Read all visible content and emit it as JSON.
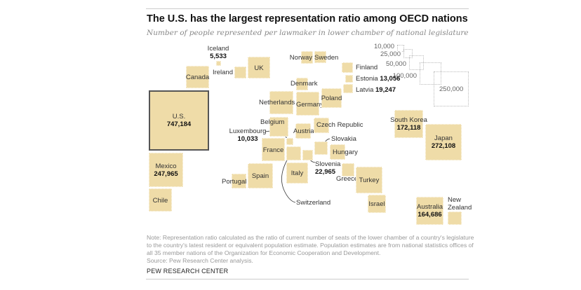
{
  "header": {
    "title": "The U.S. has the largest representation ratio among OECD nations",
    "subtitle": "Number of people represented per lawmaker in lower chamber of national legislature"
  },
  "chart_data": {
    "type": "square-area cartogram",
    "title": "The U.S. has the largest representation ratio among OECD nations",
    "measure": "People represented per lawmaker",
    "legend": {
      "placement": "top-right",
      "sizes": [
        "10,000",
        "25,000",
        "50,000",
        "100,000",
        "250,000"
      ]
    },
    "countries": [
      {
        "name": "Iceland",
        "value": "5,533"
      },
      {
        "name": "Ireland"
      },
      {
        "name": "UK"
      },
      {
        "name": "Canada"
      },
      {
        "name": "U.S.",
        "value": "747,184"
      },
      {
        "name": "Mexico",
        "value": "247,965"
      },
      {
        "name": "Chile"
      },
      {
        "name": "Norway"
      },
      {
        "name": "Sweden"
      },
      {
        "name": "Finland"
      },
      {
        "name": "Estonia",
        "value": "13,056"
      },
      {
        "name": "Latvia",
        "value": "19,247"
      },
      {
        "name": "Denmark"
      },
      {
        "name": "Netherlands"
      },
      {
        "name": "Germany"
      },
      {
        "name": "Poland"
      },
      {
        "name": "Belgium"
      },
      {
        "name": "Austria"
      },
      {
        "name": "Czech Republic"
      },
      {
        "name": "Luxembourg",
        "value": "10,033"
      },
      {
        "name": "France"
      },
      {
        "name": "Switzerland"
      },
      {
        "name": "Slovenia",
        "value": "22,965"
      },
      {
        "name": "Slovakia"
      },
      {
        "name": "Hungary"
      },
      {
        "name": "Italy"
      },
      {
        "name": "Spain"
      },
      {
        "name": "Portugal"
      },
      {
        "name": "Greece"
      },
      {
        "name": "Turkey"
      },
      {
        "name": "Israel"
      },
      {
        "name": "South Korea",
        "value": "172,118"
      },
      {
        "name": "Japan",
        "value": "272,108"
      },
      {
        "name": "Australia",
        "value": "164,686"
      },
      {
        "name": "New Zealand"
      }
    ]
  },
  "footer": {
    "note": "Note: Representation ratio calculated as the ratio of current number of seats of the lower chamber of a country's legislature to the country's latest resident or equivalent population estimate. Population estimates are from national statistics offices of all 35 member nations of the Organization for Economic Cooperation and Development.",
    "source": "Source: Pew Research Center analysis.",
    "brand": "PEW RESEARCH CENTER"
  }
}
